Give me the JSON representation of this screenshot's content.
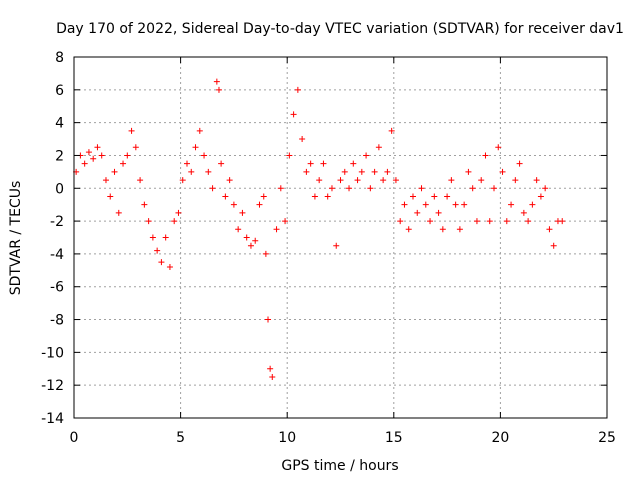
{
  "chart_data": {
    "type": "scatter",
    "title": "Day 170 of 2022, Sidereal Day-to-day VTEC variation (SDTVAR) for receiver dav1",
    "xlabel": "GPS time / hours",
    "ylabel": "SDTVAR / TECUs",
    "xlim": [
      0,
      25
    ],
    "ylim": [
      -14,
      8
    ],
    "xticks": [
      0,
      5,
      10,
      15,
      20,
      25
    ],
    "yticks": [
      -14,
      -12,
      -10,
      -8,
      -6,
      -4,
      -2,
      0,
      2,
      4,
      6,
      8
    ],
    "grid": true,
    "marker": "plus",
    "color": "#ff0000",
    "series": [
      {
        "name": "dav1",
        "x": [
          0.1,
          0.3,
          0.5,
          0.7,
          0.9,
          1.1,
          1.3,
          1.5,
          1.7,
          1.9,
          2.1,
          2.3,
          2.5,
          2.7,
          2.9,
          3.1,
          3.3,
          3.5,
          3.7,
          3.9,
          4.1,
          4.3,
          4.5,
          4.7,
          4.9,
          5.1,
          5.3,
          5.5,
          5.7,
          5.9,
          6.1,
          6.3,
          6.5,
          6.7,
          6.8,
          6.9,
          7.1,
          7.3,
          7.5,
          7.7,
          7.9,
          8.1,
          8.3,
          8.5,
          8.7,
          8.9,
          9.0,
          9.1,
          9.2,
          9.3,
          9.5,
          9.7,
          9.9,
          10.1,
          10.3,
          10.5,
          10.7,
          10.9,
          11.1,
          11.3,
          11.5,
          11.7,
          11.9,
          12.1,
          12.3,
          12.5,
          12.7,
          12.9,
          13.1,
          13.3,
          13.5,
          13.7,
          13.9,
          14.1,
          14.3,
          14.5,
          14.7,
          14.9,
          15.1,
          15.3,
          15.5,
          15.7,
          15.9,
          16.1,
          16.3,
          16.5,
          16.7,
          16.9,
          17.1,
          17.3,
          17.5,
          17.7,
          17.9,
          18.1,
          18.3,
          18.5,
          18.7,
          18.9,
          19.1,
          19.3,
          19.5,
          19.7,
          19.9,
          20.1,
          20.3,
          20.5,
          20.7,
          20.9,
          21.1,
          21.3,
          21.5,
          21.7,
          21.9,
          22.1,
          22.3,
          22.5,
          22.7,
          22.9
        ],
        "y": [
          1.0,
          2.0,
          1.5,
          2.2,
          1.8,
          2.5,
          2.0,
          0.5,
          -0.5,
          1.0,
          -1.5,
          1.5,
          2.0,
          3.5,
          2.5,
          0.5,
          -1.0,
          -2.0,
          -3.0,
          -3.8,
          -4.5,
          -3.0,
          -4.8,
          -2.0,
          -1.5,
          0.5,
          1.5,
          1.0,
          2.5,
          3.5,
          2.0,
          1.0,
          0.0,
          6.5,
          6.0,
          1.5,
          -0.5,
          0.5,
          -1.0,
          -2.5,
          -1.5,
          -3.0,
          -3.5,
          -3.2,
          -1.0,
          -0.5,
          -4.0,
          -8.0,
          -11.0,
          -11.5,
          -2.5,
          0.0,
          -2.0,
          2.0,
          4.5,
          6.0,
          3.0,
          1.0,
          1.5,
          -0.5,
          0.5,
          1.5,
          -0.5,
          0.0,
          -3.5,
          0.5,
          1.0,
          0.0,
          1.5,
          0.5,
          1.0,
          2.0,
          0.0,
          1.0,
          2.5,
          0.5,
          1.0,
          3.5,
          0.5,
          -2.0,
          -1.0,
          -2.5,
          -0.5,
          -1.5,
          0.0,
          -1.0,
          -2.0,
          -0.5,
          -1.5,
          -2.5,
          -0.5,
          0.5,
          -1.0,
          -2.5,
          -1.0,
          1.0,
          0.0,
          -2.0,
          0.5,
          2.0,
          -2.0,
          0.0,
          2.5,
          1.0,
          -2.0,
          -1.0,
          0.5,
          1.5,
          -1.5,
          -2.0,
          -1.0,
          0.5,
          -0.5,
          0.0,
          -2.5,
          -3.5,
          -2.0,
          -2.0
        ]
      }
    ]
  }
}
